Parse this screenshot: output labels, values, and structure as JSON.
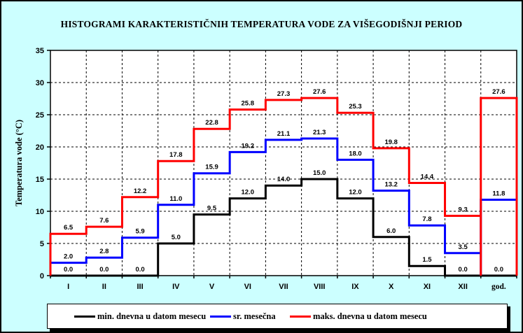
{
  "window": {
    "background_color": "#ccffff",
    "plot_background_color": "#ffffff",
    "border_color": "#000000"
  },
  "chart_data": {
    "type": "step-histogram",
    "title": "HISTOGRAMI KARAKTERISTIČNIH TEMPERATURA VODE ZA VIŠEGODIŠNJI PERIOD",
    "xlabel": "",
    "ylabel": "Temperatura vode (°C)",
    "ylim": [
      0,
      35
    ],
    "ytick_step": 5,
    "grid": true,
    "gridline_style": "dashed",
    "legend_position": "bottom",
    "categories": [
      "I",
      "II",
      "III",
      "IV",
      "V",
      "VI",
      "VII",
      "VIII",
      "IX",
      "X",
      "XI",
      "XII",
      "god."
    ],
    "series": [
      {
        "name": "min. dnevna u datom mesecu",
        "color": "#000000",
        "values": [
          0.0,
          0.0,
          0.0,
          5.0,
          9.5,
          12.0,
          14.0,
          15.0,
          12.0,
          6.0,
          1.5,
          0.0,
          0.0
        ]
      },
      {
        "name": "sr. mesečna",
        "color": "#0000ff",
        "values": [
          2.0,
          2.8,
          5.9,
          11.0,
          15.9,
          19.2,
          21.1,
          21.3,
          18.0,
          13.2,
          7.8,
          3.5,
          11.8
        ]
      },
      {
        "name": "maks. dnevna u datom mesecu",
        "color": "#ff0000",
        "values": [
          6.5,
          7.6,
          12.2,
          17.8,
          22.8,
          25.8,
          27.3,
          27.6,
          25.3,
          19.8,
          14.4,
          9.3,
          27.6
        ]
      }
    ]
  }
}
